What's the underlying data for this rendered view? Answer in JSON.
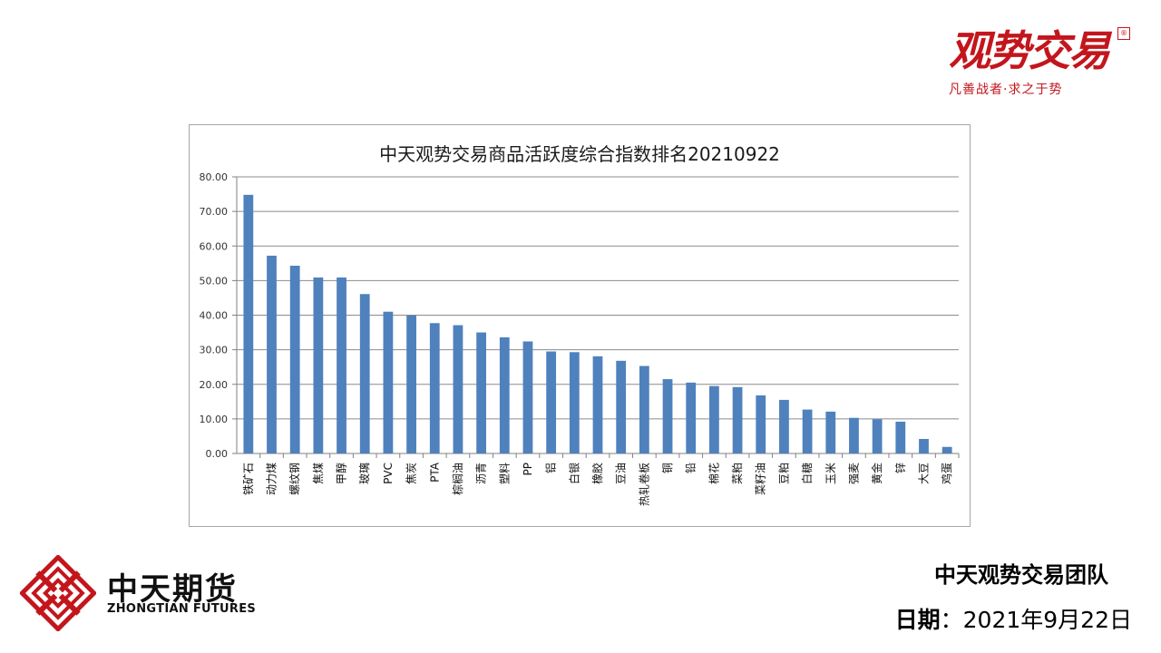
{
  "brand": {
    "name": "观势交易",
    "seal": "®",
    "slogan": "凡善战者·求之于势"
  },
  "company": {
    "name_cn": "中天期货",
    "name_en": "ZHONGTIAN FUTURES",
    "logo_color": "#c3161c"
  },
  "footer": {
    "team": "中天观势交易团队",
    "date_label": "日期",
    "date_sep": "：",
    "date_value": "2021年9月22日"
  },
  "chart_data": {
    "type": "bar",
    "title": "中天观势交易商品活跃度综合指数排名20210922",
    "xlabel": "",
    "ylabel": "",
    "ylim": [
      0,
      80
    ],
    "yticks": [
      "0.00",
      "10.00",
      "20.00",
      "30.00",
      "40.00",
      "50.00",
      "60.00",
      "70.00",
      "80.00"
    ],
    "grid": true,
    "bar_color": "#4f81bd",
    "categories": [
      "铁矿石",
      "动力煤",
      "螺纹钢",
      "焦煤",
      "甲醇",
      "玻璃",
      "PVC",
      "焦炭",
      "PTA",
      "棕榈油",
      "沥青",
      "塑料",
      "PP",
      "铝",
      "白银",
      "橡胶",
      "豆油",
      "热轧卷板",
      "铜",
      "铅",
      "棉花",
      "菜粕",
      "菜籽油",
      "豆粕",
      "白糖",
      "玉米",
      "强麦",
      "黄金",
      "锌",
      "大豆",
      "鸡蛋"
    ],
    "values": [
      74.8,
      57.2,
      54.3,
      50.9,
      50.9,
      46.1,
      41.0,
      39.9,
      37.7,
      37.1,
      35.0,
      33.6,
      32.4,
      29.5,
      29.3,
      28.1,
      26.8,
      25.3,
      21.5,
      20.5,
      19.5,
      19.2,
      16.8,
      15.5,
      12.7,
      12.1,
      10.3,
      9.9,
      9.2,
      4.2,
      1.9
    ]
  }
}
